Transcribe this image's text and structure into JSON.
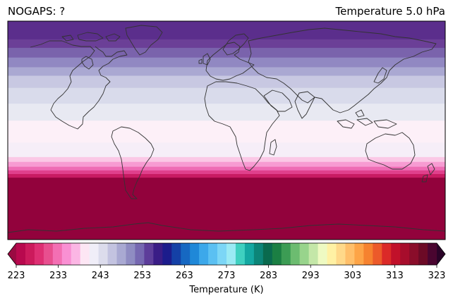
{
  "header": {
    "left_title": "NOGAPS: ?",
    "right_title": "Temperature 5.0 hPa"
  },
  "colorbar": {
    "label": "Temperature (K)",
    "ticks": [
      "223",
      "233",
      "243",
      "253",
      "263",
      "273",
      "283",
      "293",
      "303",
      "313",
      "323"
    ],
    "min": 223,
    "max": 323,
    "colors": [
      "#b8094e",
      "#cc1a5c",
      "#de2f73",
      "#e84f8f",
      "#f36fb3",
      "#f990d3",
      "#fbb6e4",
      "#fde6f4",
      "#f0eef8",
      "#dcdcec",
      "#c3c3e0",
      "#a9a9d2",
      "#8f8cc2",
      "#7668b1",
      "#5d3d9a",
      "#3a1d86",
      "#1c1c8c",
      "#1440a6",
      "#1668c2",
      "#1f88d8",
      "#3ca8ea",
      "#5bc0f2",
      "#7cd6f6",
      "#9aeaf4",
      "#3fd0c0",
      "#14a8a2",
      "#0c8578",
      "#0a6a4e",
      "#1b7f43",
      "#3c9c54",
      "#6cbc70",
      "#98d48c",
      "#c4e7a8",
      "#eefac2",
      "#fff1a4",
      "#ffd98a",
      "#ffbf6a",
      "#fda447",
      "#f6822f",
      "#ec5a2a",
      "#db2a28",
      "#c1112a",
      "#a70d2c",
      "#8a0d2a",
      "#6c0a26",
      "#4a0530"
    ],
    "under_color": "#9a0a42",
    "over_color": "#2a0328"
  },
  "map": {
    "projection": "PlateCarree",
    "bands": [
      {
        "lat_top": 90,
        "lat_bottom": 75,
        "color": "#5b2e8c"
      },
      {
        "lat_top": 75,
        "lat_bottom": 68,
        "color": "#6b3f97"
      },
      {
        "lat_top": 68,
        "lat_bottom": 60,
        "color": "#7a63ac"
      },
      {
        "lat_top": 60,
        "lat_bottom": 52,
        "color": "#9188c2"
      },
      {
        "lat_top": 52,
        "lat_bottom": 45,
        "color": "#aaa8d2"
      },
      {
        "lat_top": 45,
        "lat_bottom": 35,
        "color": "#c8c8e2"
      },
      {
        "lat_top": 35,
        "lat_bottom": 22,
        "color": "#d9dbeb"
      },
      {
        "lat_top": 22,
        "lat_bottom": 8,
        "color": "#e8e9f2"
      },
      {
        "lat_top": 8,
        "lat_bottom": -10,
        "color": "#fdf0f8"
      },
      {
        "lat_top": -10,
        "lat_bottom": -22,
        "color": "#f6eef8"
      },
      {
        "lat_top": -22,
        "lat_bottom": -26,
        "color": "#fbc8e6"
      },
      {
        "lat_top": -26,
        "lat_bottom": -30,
        "color": "#f79bd2"
      },
      {
        "lat_top": -30,
        "lat_bottom": -33,
        "color": "#ee6cb4"
      },
      {
        "lat_top": -33,
        "lat_bottom": -36,
        "color": "#e0408c"
      },
      {
        "lat_top": -36,
        "lat_bottom": -39,
        "color": "#c81b62"
      },
      {
        "lat_top": -39,
        "lat_bottom": -90,
        "color": "#92023c"
      }
    ],
    "coastline_color": "#333333"
  }
}
